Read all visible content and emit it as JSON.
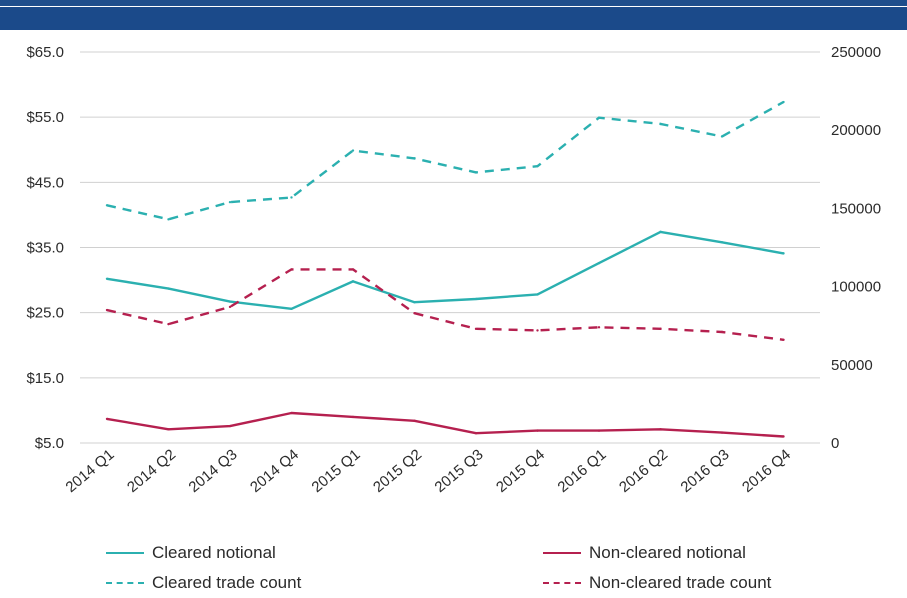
{
  "colors": {
    "header": "#1b4a8a",
    "cleared": "#2bb0b0",
    "noncleared": "#b5204f",
    "grid": "#d0d0d0",
    "text": "#2b2b2b"
  },
  "chart_data": {
    "type": "line",
    "title": "",
    "categories": [
      "2014 Q1",
      "2014 Q2",
      "2014 Q3",
      "2014 Q4",
      "2015 Q1",
      "2015 Q2",
      "2015 Q3",
      "2015 Q4",
      "2016 Q1",
      "2016 Q2",
      "2016 Q3",
      "2016 Q4"
    ],
    "left_axis": {
      "ylim": [
        5,
        65
      ],
      "tick_labels": [
        "$65.0",
        "$55.0",
        "$45.0",
        "$35.0",
        "$25.0",
        "$15.0",
        "$5.0"
      ],
      "tick_values": [
        65,
        55,
        45,
        35,
        25,
        15,
        5
      ]
    },
    "right_axis": {
      "ylim": [
        0,
        250000
      ],
      "tick_labels": [
        "250000",
        "200000",
        "150000",
        "100000",
        "50000",
        "0"
      ],
      "tick_values": [
        250000,
        200000,
        150000,
        100000,
        50000,
        0
      ]
    },
    "grid": true,
    "legend_position": "bottom",
    "series": [
      {
        "name": "Cleared notional",
        "axis": "left",
        "style": "solid",
        "color": "#2bb0b0",
        "values": [
          30.2,
          28.7,
          26.7,
          25.6,
          29.8,
          26.6,
          27.1,
          27.8,
          32.6,
          37.4,
          35.8,
          34.1
        ]
      },
      {
        "name": "Non-cleared notional",
        "axis": "left",
        "style": "solid",
        "color": "#b5204f",
        "values": [
          8.7,
          7.1,
          7.6,
          9.6,
          9.0,
          8.4,
          6.5,
          6.9,
          6.9,
          7.1,
          6.6,
          6.0
        ]
      },
      {
        "name": "Cleared trade count",
        "axis": "right",
        "style": "dashed",
        "color": "#2bb0b0",
        "values": [
          152000,
          143000,
          154000,
          157000,
          187000,
          182000,
          173000,
          177000,
          208000,
          204000,
          196000,
          218000
        ]
      },
      {
        "name": "Non-cleared trade count",
        "axis": "right",
        "style": "dashed",
        "color": "#b5204f",
        "values": [
          85000,
          76000,
          87000,
          111000,
          111000,
          83000,
          73000,
          72000,
          74000,
          73000,
          71000,
          66000
        ]
      }
    ]
  }
}
